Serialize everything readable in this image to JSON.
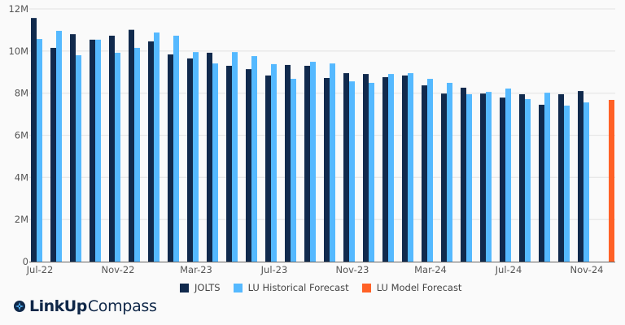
{
  "colors": {
    "jolts": "#112a4d",
    "lu_historical": "#55b9ff",
    "lu_model": "#ff6126",
    "grid": "#e8e8e8",
    "axis": "#666666",
    "tick_text": "#555555"
  },
  "chart_data": {
    "type": "bar",
    "title": "",
    "xlabel": "",
    "ylabel": "",
    "ylim": [
      0,
      12000000
    ],
    "yticks": [
      0,
      2000000,
      4000000,
      6000000,
      8000000,
      10000000,
      12000000
    ],
    "ytick_labels": [
      "0",
      "2M",
      "4M",
      "6M",
      "8M",
      "10M",
      "12M"
    ],
    "grid": true,
    "legend_position": "bottom",
    "categories": [
      "Jul-22",
      "Aug-22",
      "Sep-22",
      "Oct-22",
      "Nov-22",
      "Dec-22",
      "Jan-23",
      "Feb-23",
      "Mar-23",
      "Apr-23",
      "May-23",
      "Jun-23",
      "Jul-23",
      "Aug-23",
      "Sep-23",
      "Oct-23",
      "Nov-23",
      "Dec-23",
      "Jan-24",
      "Feb-24",
      "Mar-24",
      "Apr-24",
      "May-24",
      "Jun-24",
      "Jul-24",
      "Aug-24",
      "Sep-24",
      "Oct-24",
      "Nov-24",
      "Dec-24"
    ],
    "xtick_labels": [
      {
        "index": 0,
        "label": "Jul-22"
      },
      {
        "index": 4,
        "label": "Nov-22"
      },
      {
        "index": 8,
        "label": "Mar-23"
      },
      {
        "index": 12,
        "label": "Jul-23"
      },
      {
        "index": 16,
        "label": "Nov-23"
      },
      {
        "index": 20,
        "label": "Mar-24"
      },
      {
        "index": 24,
        "label": "Jul-24"
      },
      {
        "index": 28,
        "label": "Nov-24"
      }
    ],
    "series": [
      {
        "name": "JOLTS",
        "color_key": "jolts",
        "values": [
          11570000,
          10150000,
          10800000,
          10540000,
          10730000,
          11010000,
          10460000,
          9840000,
          9650000,
          9920000,
          9300000,
          9140000,
          8840000,
          9340000,
          9300000,
          8720000,
          8950000,
          8910000,
          8760000,
          8840000,
          8370000,
          7980000,
          8260000,
          7980000,
          7790000,
          7950000,
          7450000,
          7950000,
          8100000,
          null
        ]
      },
      {
        "name": "LU Historical Forecast",
        "color_key": "lu_historical",
        "values": [
          10570000,
          10960000,
          9800000,
          10540000,
          9920000,
          10150000,
          10880000,
          10730000,
          9950000,
          9410000,
          9950000,
          9760000,
          9380000,
          8680000,
          9490000,
          9410000,
          8560000,
          8490000,
          8910000,
          8950000,
          8680000,
          8490000,
          7950000,
          8060000,
          8220000,
          7720000,
          8020000,
          7410000,
          7560000,
          null
        ]
      },
      {
        "name": "LU Model Forecast",
        "color_key": "lu_model",
        "values": [
          null,
          null,
          null,
          null,
          null,
          null,
          null,
          null,
          null,
          null,
          null,
          null,
          null,
          null,
          null,
          null,
          null,
          null,
          null,
          null,
          null,
          null,
          null,
          null,
          null,
          null,
          null,
          null,
          null,
          7680000
        ]
      }
    ]
  },
  "legend": {
    "items": [
      {
        "label": "JOLTS",
        "color_key": "jolts"
      },
      {
        "label": "LU Historical Forecast",
        "color_key": "lu_historical"
      },
      {
        "label": "LU Model Forecast",
        "color_key": "lu_model"
      }
    ]
  },
  "brand": {
    "name_bold": "LinkUp",
    "name_light": "Compass",
    "icon": "compass-icon"
  }
}
